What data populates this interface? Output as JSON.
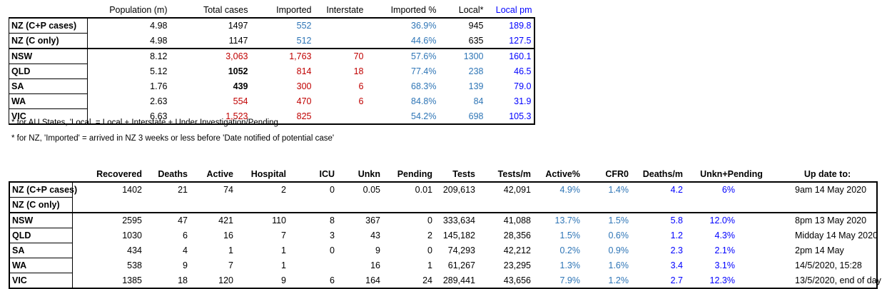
{
  "colors": {
    "black": "#000000",
    "red": "#c00000",
    "teal": "#2e75b6",
    "blue": "#0000ff"
  },
  "table1": {
    "headers": [
      "",
      "Population (m)",
      "Total cases",
      "Imported",
      "Interstate",
      "Imported %",
      "Local*",
      "Local pm"
    ],
    "rows": [
      {
        "name": "NZ (C+P cases)",
        "population": "4.98",
        "total": "1497",
        "imported": "552",
        "interstate": "",
        "imported_pct": "36.9%",
        "local": "945",
        "local_pm": "189.8"
      },
      {
        "name": "NZ (C only)",
        "population": "4.98",
        "total": "1147",
        "imported": "512",
        "interstate": "",
        "imported_pct": "44.6%",
        "local": "635",
        "local_pm": "127.5"
      },
      {
        "name": "NSW",
        "population": "8.12",
        "total": "3,063",
        "imported": "1,763",
        "interstate": "70",
        "imported_pct": "57.6%",
        "local": "1300",
        "local_pm": "160.1"
      },
      {
        "name": "QLD",
        "population": "5.12",
        "total": "1052",
        "imported": "814",
        "interstate": "18",
        "imported_pct": "77.4%",
        "local": "238",
        "local_pm": "46.5"
      },
      {
        "name": "SA",
        "population": "1.76",
        "total": "439",
        "imported": "300",
        "interstate": "6",
        "imported_pct": "68.3%",
        "local": "139",
        "local_pm": "79.0"
      },
      {
        "name": "WA",
        "population": "2.63",
        "total": "554",
        "imported": "470",
        "interstate": "6",
        "imported_pct": "84.8%",
        "local": "84",
        "local_pm": "31.9"
      },
      {
        "name": "VIC",
        "population": "6.63",
        "total": "1,523",
        "imported": "825",
        "interstate": "",
        "imported_pct": "54.2%",
        "local": "698",
        "local_pm": "105.3"
      }
    ],
    "notes": [
      "* for AU States, 'Local. = Local + Interstate + Under Investigation/Pending",
      "* for NZ, 'Imported' = arrived in NZ 3 weeks or less before 'Date notified of potential case'"
    ]
  },
  "table2": {
    "headers": [
      "",
      "Recovered",
      "Deaths",
      "Active",
      "Hospital",
      "ICU",
      "Unkn",
      "Pending",
      "Tests",
      "Tests/m",
      "Active%",
      "CFR0",
      "Deaths/m",
      "Unkn+Pending",
      "Up date to:"
    ],
    "rows": [
      {
        "name": "NZ (C+P cases)",
        "recovered": "1402",
        "deaths": "21",
        "active": "74",
        "hospital": "2",
        "icu": "0",
        "unkn": "0.05",
        "pending": "0.01",
        "tests": "209,613",
        "tests_m": "42,091",
        "active_pct": "4.9%",
        "cfr0": "1.4%",
        "deaths_m": "4.2",
        "unkn_pending": "6%",
        "update": "9am 14 May 2020"
      },
      {
        "name": "NZ (C only)",
        "recovered": "",
        "deaths": "",
        "active": "",
        "hospital": "",
        "icu": "",
        "unkn": "",
        "pending": "",
        "tests": "",
        "tests_m": "",
        "active_pct": "",
        "cfr0": "",
        "deaths_m": "",
        "unkn_pending": "",
        "update": ""
      },
      {
        "name": "NSW",
        "recovered": "2595",
        "deaths": "47",
        "active": "421",
        "hospital": "110",
        "icu": "8",
        "unkn": "367",
        "pending": "0",
        "tests": "333,634",
        "tests_m": "41,088",
        "active_pct": "13.7%",
        "cfr0": "1.5%",
        "deaths_m": "5.8",
        "unkn_pending": "12.0%",
        "update": "8pm 13 May 2020"
      },
      {
        "name": "QLD",
        "recovered": "1030",
        "deaths": "6",
        "active": "16",
        "hospital": "7",
        "icu": "3",
        "unkn": "43",
        "pending": "2",
        "tests": "145,182",
        "tests_m": "28,356",
        "active_pct": "1.5%",
        "cfr0": "0.6%",
        "deaths_m": "1.2",
        "unkn_pending": "4.3%",
        "update": "Midday 14 May 2020"
      },
      {
        "name": "SA",
        "recovered": "434",
        "deaths": "4",
        "active": "1",
        "hospital": "1",
        "icu": "0",
        "unkn": "9",
        "pending": "0",
        "tests": "74,293",
        "tests_m": "42,212",
        "active_pct": "0.2%",
        "cfr0": "0.9%",
        "deaths_m": "2.3",
        "unkn_pending": "2.1%",
        "update": "2pm 14 May"
      },
      {
        "name": "WA",
        "recovered": "538",
        "deaths": "9",
        "active": "7",
        "hospital": "1",
        "icu": "",
        "unkn": "16",
        "pending": "1",
        "tests": "61,267",
        "tests_m": "23,295",
        "active_pct": "1.3%",
        "cfr0": "1.6%",
        "deaths_m": "3.4",
        "unkn_pending": "3.1%",
        "update": "14/5/2020, 15:28"
      },
      {
        "name": "VIC",
        "recovered": "1385",
        "deaths": "18",
        "active": "120",
        "hospital": "9",
        "icu": "6",
        "unkn": "164",
        "pending": "24",
        "tests": "289,441",
        "tests_m": "43,656",
        "active_pct": "7.9%",
        "cfr0": "1.2%",
        "deaths_m": "2.7",
        "unkn_pending": "12.3%",
        "update": "13/5/2020, end of day"
      }
    ]
  }
}
